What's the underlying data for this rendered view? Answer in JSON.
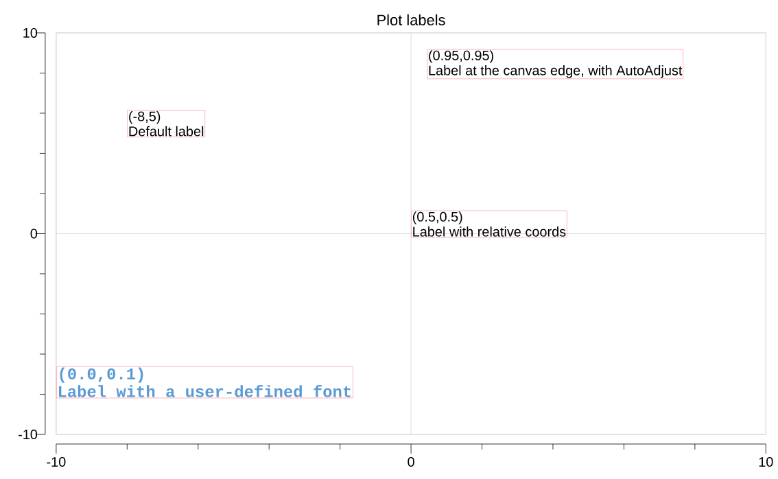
{
  "chart_data": {
    "type": "scatter",
    "title": "Plot labels",
    "xlim": [
      -10,
      10
    ],
    "ylim": [
      -10,
      10
    ],
    "xticks": [
      -10,
      {
        "value": -8,
        "label": null
      },
      {
        "value": -6,
        "label": null
      },
      {
        "value": -4,
        "label": null
      },
      {
        "value": -2,
        "label": null
      },
      0,
      {
        "value": 2,
        "label": null
      },
      {
        "value": 4,
        "label": null
      },
      {
        "value": 6,
        "label": null
      },
      {
        "value": 8,
        "label": null
      },
      10
    ],
    "yticks": [
      -10,
      {
        "value": -8,
        "label": null
      },
      {
        "value": -6,
        "label": null
      },
      {
        "value": -4,
        "label": null
      },
      {
        "value": -2,
        "label": null
      },
      0,
      {
        "value": 2,
        "label": null
      },
      {
        "value": 4,
        "label": null
      },
      {
        "value": 6,
        "label": null
      },
      {
        "value": 8,
        "label": null
      },
      10
    ],
    "grid": true,
    "annotations": [
      "(-8,5)",
      "Default label",
      "(0.95,0.95)",
      "Label at the canvas edge, with AutoAdjust",
      "(0.5,0.5)",
      "Label with relative coords",
      "(0.0,0.1)",
      "Label with a user-defined font"
    ]
  }
}
